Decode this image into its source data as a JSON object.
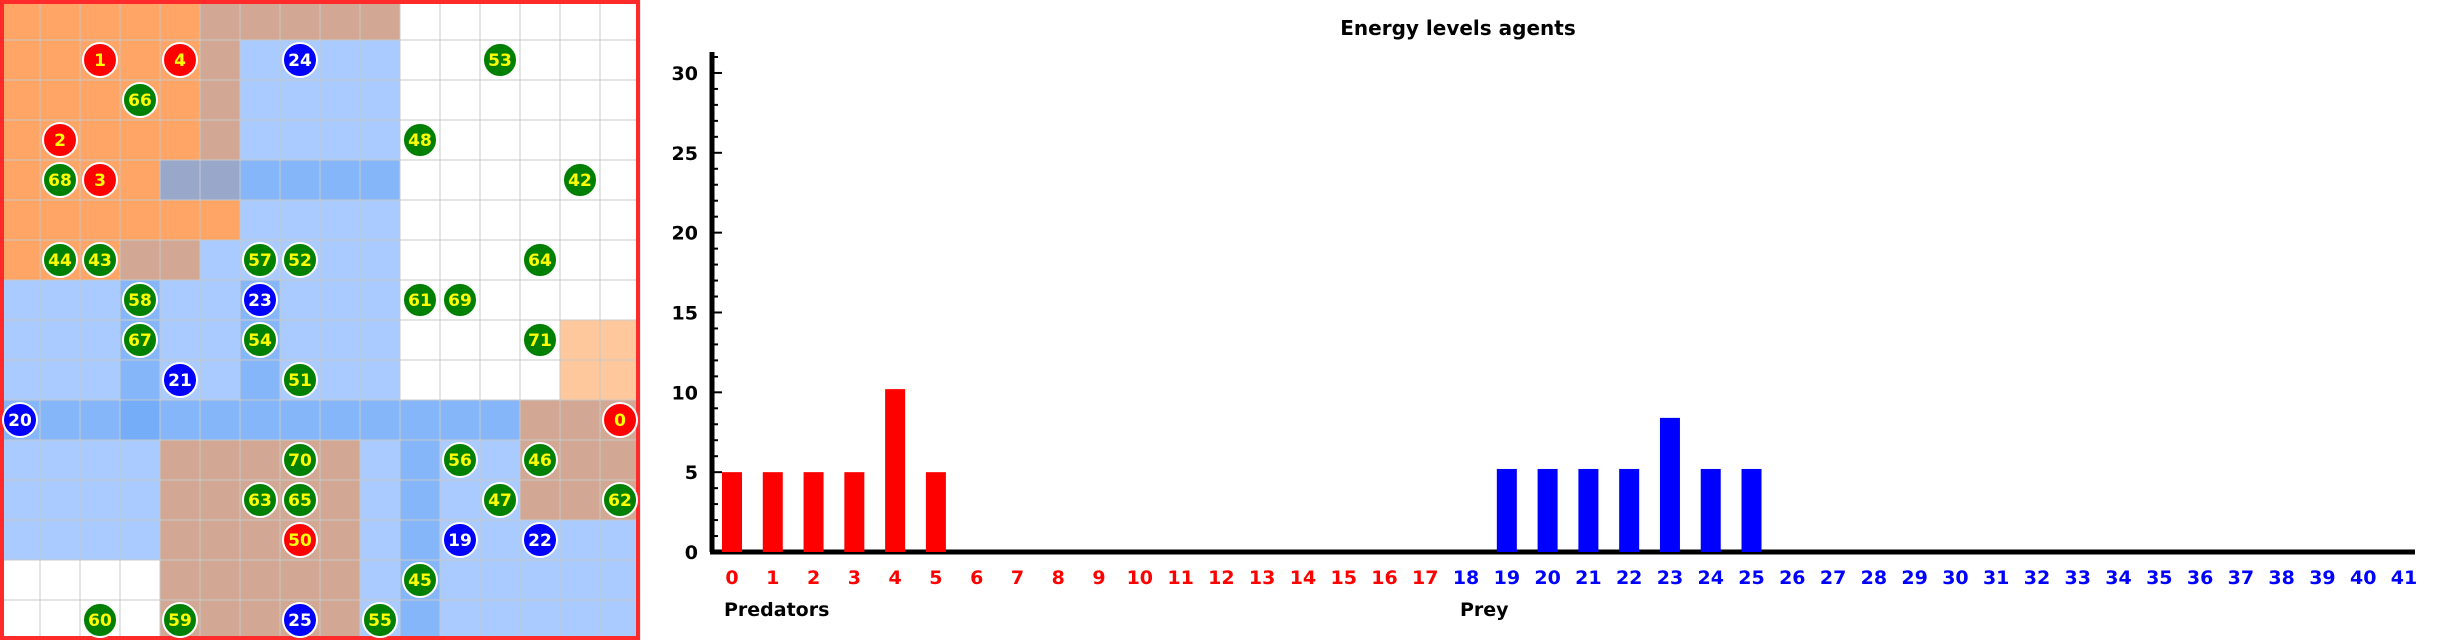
{
  "colors": {
    "predator": "#ff0000",
    "prey": "#0000ff",
    "food": "#008000",
    "agent_label": "#ffff00",
    "prey_label": "#ffffff",
    "border": "#ff2a2a",
    "grid_line": "#c8c8c8",
    "region_orange": "#ffa565",
    "region_light_orange": "#ffc79c",
    "region_blue": "#6aa5f5",
    "region_light_blue": "#a9cbff",
    "region_brown": "#d2a894",
    "region_white": "#ffffff"
  },
  "grid": {
    "cols": 16,
    "rows": 16,
    "cells": [
      "OOOOOBBBBBWWWWWW",
      "OOOOOBLLLLWWWWWW",
      "OOOOOBLLLLWWWWWW",
      "OOOOOBLLLLWWWWWW",
      "OOOOBBLLLLWWWWWW",
      "OOOOOOLLLLWWWWWW",
      "OOOBBLLLLLWWWWWW",
      "LLLLLLLLLLWWWWWW",
      "LLLLLLLLLLWWWWPP",
      "LLLLLLLLLLWWWWPP",
      "LLLLLLLLLLLLLBBB",
      "LLLLBBBBBLLLLBBB",
      "LLLLBBBBBLLLLBBB",
      "LLLLBBBBBLLLLLLL",
      "WWWWBBBBBLLLLLLL",
      "WWWWBBBBBLLLLLLL"
    ],
    "agents": [
      {
        "id": "0",
        "type": "predator",
        "col": 15,
        "row": 10
      },
      {
        "id": "1",
        "type": "predator",
        "col": 2,
        "row": 1
      },
      {
        "id": "2",
        "type": "predator",
        "col": 1,
        "row": 3
      },
      {
        "id": "3",
        "type": "predator",
        "col": 2,
        "row": 4
      },
      {
        "id": "4",
        "type": "predator",
        "col": 4,
        "row": 1
      },
      {
        "id": "50",
        "type": "predator",
        "col": 7,
        "row": 13
      },
      {
        "id": "19",
        "type": "prey",
        "col": 11,
        "row": 13
      },
      {
        "id": "20",
        "type": "prey",
        "col": 0,
        "row": 10
      },
      {
        "id": "21",
        "type": "prey",
        "col": 4,
        "row": 9
      },
      {
        "id": "22",
        "type": "prey",
        "col": 13,
        "row": 13
      },
      {
        "id": "23",
        "type": "prey",
        "col": 6,
        "row": 7
      },
      {
        "id": "24",
        "type": "prey",
        "col": 7,
        "row": 1
      },
      {
        "id": "25",
        "type": "prey",
        "col": 7,
        "row": 15
      },
      {
        "id": "53",
        "type": "food",
        "col": 12,
        "row": 1
      },
      {
        "id": "66",
        "type": "food",
        "col": 3,
        "row": 2
      },
      {
        "id": "48",
        "type": "food",
        "col": 10,
        "row": 3
      },
      {
        "id": "68",
        "type": "food",
        "col": 1,
        "row": 4
      },
      {
        "id": "42",
        "type": "food",
        "col": 14,
        "row": 4
      },
      {
        "id": "44",
        "type": "food",
        "col": 1,
        "row": 6
      },
      {
        "id": "43",
        "type": "food",
        "col": 2,
        "row": 6
      },
      {
        "id": "57",
        "type": "food",
        "col": 6,
        "row": 6
      },
      {
        "id": "52",
        "type": "food",
        "col": 7,
        "row": 6
      },
      {
        "id": "64",
        "type": "food",
        "col": 13,
        "row": 6
      },
      {
        "id": "58",
        "type": "food",
        "col": 3,
        "row": 7
      },
      {
        "id": "61",
        "type": "food",
        "col": 10,
        "row": 7
      },
      {
        "id": "69",
        "type": "food",
        "col": 11,
        "row": 7
      },
      {
        "id": "67",
        "type": "food",
        "col": 3,
        "row": 8
      },
      {
        "id": "54",
        "type": "food",
        "col": 6,
        "row": 8
      },
      {
        "id": "71",
        "type": "food",
        "col": 13,
        "row": 8
      },
      {
        "id": "51",
        "type": "food",
        "col": 7,
        "row": 9
      },
      {
        "id": "70",
        "type": "food",
        "col": 7,
        "row": 11
      },
      {
        "id": "56",
        "type": "food",
        "col": 11,
        "row": 11
      },
      {
        "id": "46",
        "type": "food",
        "col": 13,
        "row": 11
      },
      {
        "id": "63",
        "type": "food",
        "col": 6,
        "row": 12
      },
      {
        "id": "65",
        "type": "food",
        "col": 7,
        "row": 12
      },
      {
        "id": "47",
        "type": "food",
        "col": 12,
        "row": 12
      },
      {
        "id": "62",
        "type": "food",
        "col": 15,
        "row": 12
      },
      {
        "id": "45",
        "type": "food",
        "col": 10,
        "row": 14
      },
      {
        "id": "60",
        "type": "food",
        "col": 2,
        "row": 15
      },
      {
        "id": "59",
        "type": "food",
        "col": 4,
        "row": 15
      },
      {
        "id": "55",
        "type": "food",
        "col": 9,
        "row": 15
      }
    ]
  },
  "chart_data": {
    "type": "bar",
    "title": "Energy levels agents",
    "ylim": [
      0,
      31
    ],
    "y_ticks": [
      0,
      5,
      10,
      15,
      20,
      25,
      30
    ],
    "y_tick_labels": [
      "0",
      "5",
      "10",
      "15",
      "20",
      "25",
      "30"
    ],
    "categories": [
      "0",
      "1",
      "2",
      "3",
      "4",
      "5",
      "6",
      "7",
      "8",
      "9",
      "10",
      "11",
      "12",
      "13",
      "14",
      "15",
      "16",
      "17",
      "18",
      "19",
      "20",
      "21",
      "22",
      "23",
      "24",
      "25",
      "26",
      "27",
      "28",
      "29",
      "30",
      "31",
      "32",
      "33",
      "34",
      "35",
      "36",
      "37",
      "38",
      "39",
      "40",
      "41"
    ],
    "predator_range": [
      0,
      17
    ],
    "series": [
      {
        "name": "Predators",
        "color": "#ff0000",
        "values": [
          5,
          5,
          5,
          5,
          10.2,
          5,
          0,
          0,
          0,
          0,
          0,
          0,
          0,
          0,
          0,
          0,
          0,
          0,
          0,
          0,
          0,
          0,
          0,
          0,
          0,
          0,
          0,
          0,
          0,
          0,
          0,
          0,
          0,
          0,
          0,
          0,
          0,
          0,
          0,
          0,
          0,
          0
        ]
      },
      {
        "name": "Prey",
        "color": "#0000ff",
        "values": [
          0,
          0,
          0,
          0,
          0,
          0,
          0,
          0,
          0,
          0,
          0,
          0,
          0,
          0,
          0,
          0,
          0,
          0,
          0,
          5.2,
          5.2,
          5.2,
          5.2,
          8.4,
          5.2,
          5.2,
          0,
          0,
          0,
          0,
          0,
          0,
          0,
          0,
          0,
          0,
          0,
          0,
          0,
          0,
          0,
          0
        ]
      }
    ],
    "grid": false
  }
}
